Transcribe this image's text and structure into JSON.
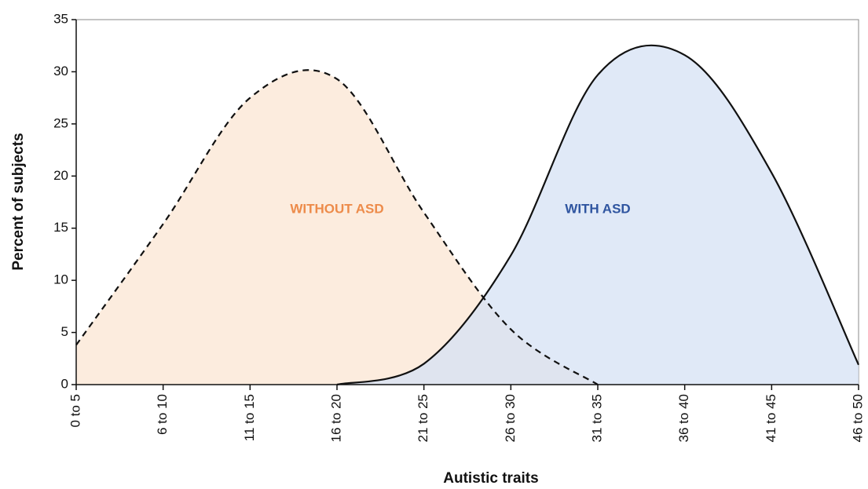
{
  "chart_data": {
    "type": "line",
    "x_label": "Autistic traits",
    "y_label": "Percent of subjects",
    "categories": [
      "0 to 5",
      "6 to 10",
      "11 to 15",
      "16 to 20",
      "21 to 25",
      "26 to 30",
      "31 to 35",
      "36 to 40",
      "41 to 45",
      "46 to 50"
    ],
    "series": [
      {
        "name": "WITHOUT ASD",
        "color": "#ed8b4a",
        "fill": "#fbe6d3",
        "dashed": true,
        "values": [
          3.8,
          15.4,
          27.5,
          29.3,
          16.5,
          5.3,
          0,
          null,
          null,
          null
        ]
      },
      {
        "name": "WITH ASD",
        "color": "#2f55a0",
        "fill": "#d6e2f4",
        "dashed": false,
        "values": [
          null,
          null,
          null,
          0,
          2,
          12.4,
          29.7,
          31.6,
          20.3,
          1.9
        ]
      }
    ],
    "ylim": [
      0,
      35
    ],
    "yticks": [
      0,
      5,
      10,
      15,
      20,
      25,
      30,
      35
    ]
  }
}
